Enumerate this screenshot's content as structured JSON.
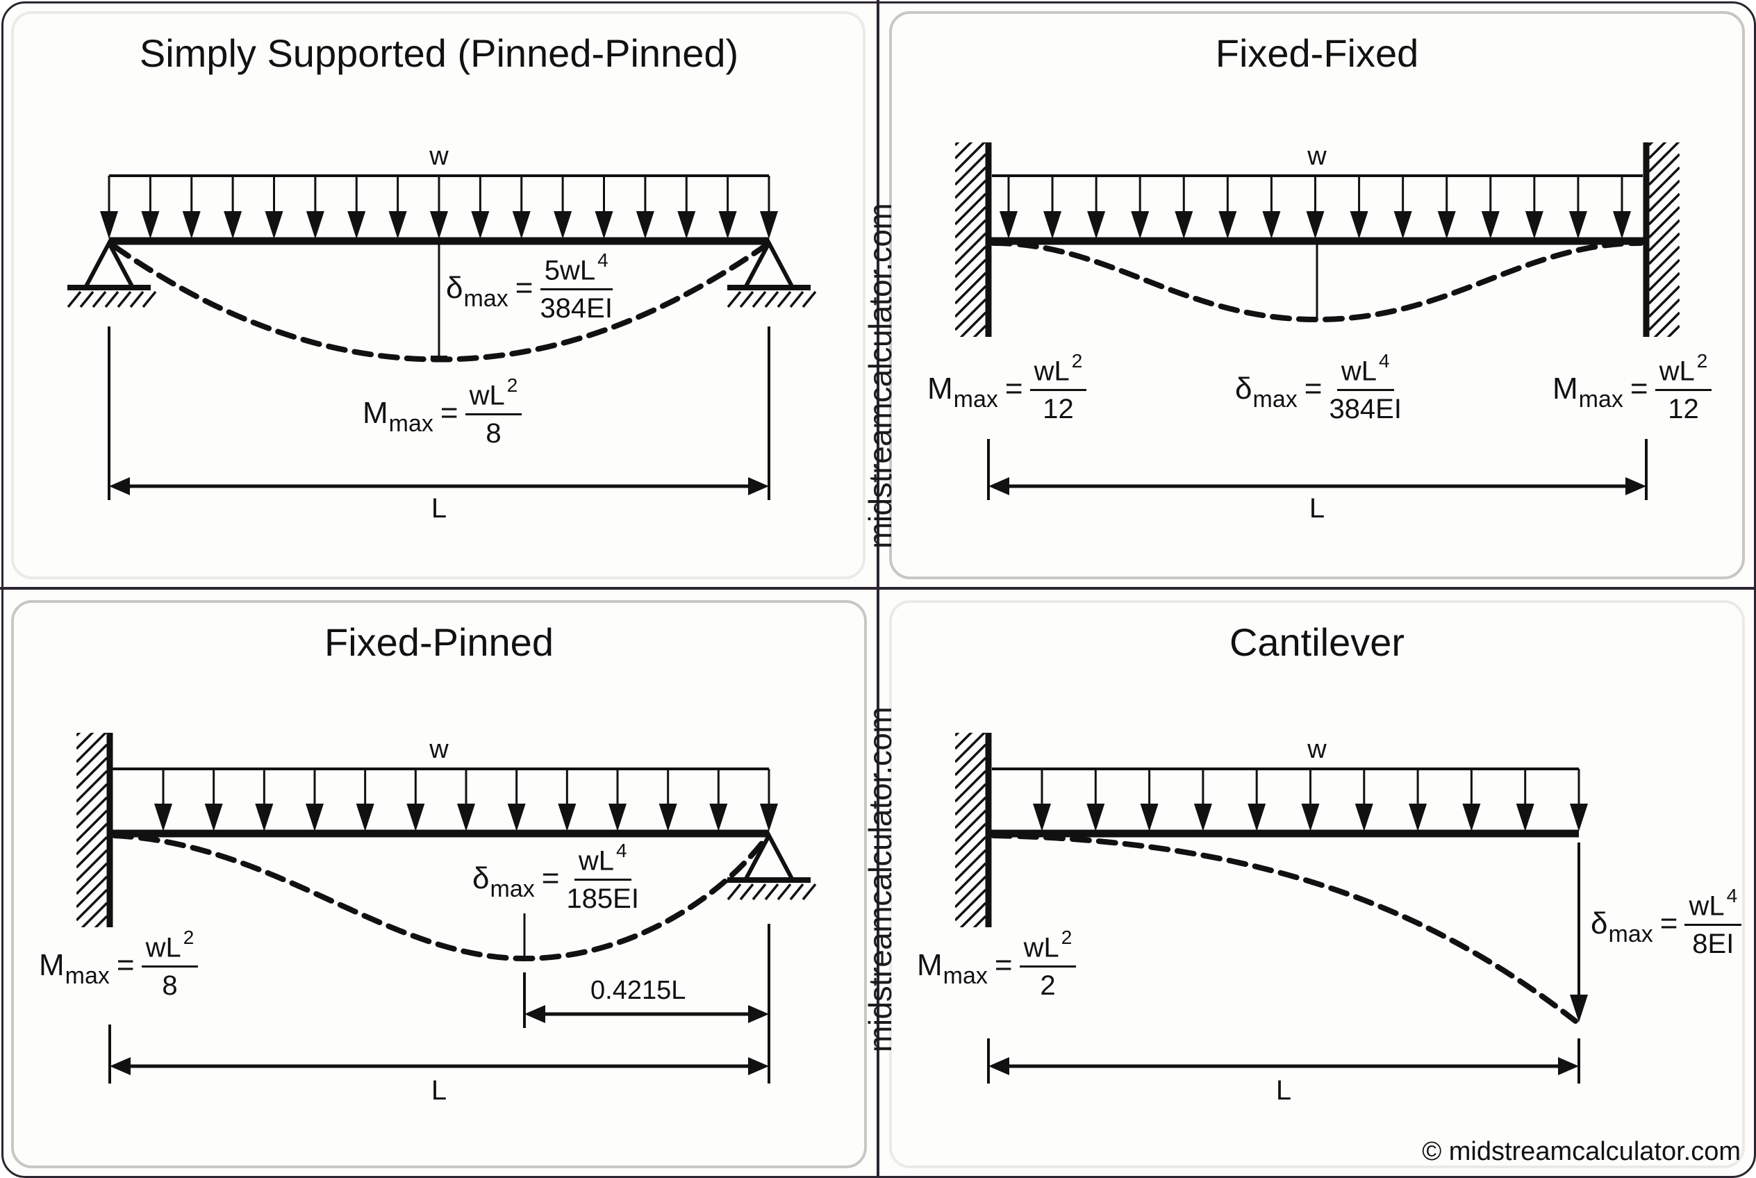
{
  "colors": {
    "frame": "#2a2530",
    "panel_border": "#c9c7c3",
    "ink": "#111111",
    "background": "#fdfdfc"
  },
  "panels": [
    {
      "id": "simply-supported",
      "title": "Simply Supported (Pinned-Pinned)",
      "load_label": "w",
      "arrow_count": 17,
      "span_label": "L",
      "supports": [
        "pin",
        "pin"
      ],
      "deflection": {
        "symbol": "δ",
        "sub": "max",
        "eq": "=",
        "num": "5wL",
        "num_exp": "4",
        "den": "384EI"
      },
      "moment": {
        "symbol": "M",
        "sub": "max",
        "eq": "=",
        "num": "wL",
        "num_exp": "2",
        "den": "8"
      }
    },
    {
      "id": "fixed-fixed",
      "title": "Fixed-Fixed",
      "load_label": "w",
      "arrow_count": 15,
      "span_label": "L",
      "supports": [
        "fixed",
        "fixed"
      ],
      "moment_left": {
        "symbol": "M",
        "sub": "max",
        "eq": "=",
        "num": "wL",
        "num_exp": "2",
        "den": "12"
      },
      "deflection": {
        "symbol": "δ",
        "sub": "max",
        "eq": "=",
        "num": "wL",
        "num_exp": "4",
        "den": "384EI"
      },
      "moment_right": {
        "symbol": "M",
        "sub": "max",
        "eq": "=",
        "num": "wL",
        "num_exp": "2",
        "den": "12"
      }
    },
    {
      "id": "fixed-pinned",
      "title": "Fixed-Pinned",
      "load_label": "w",
      "arrow_count": 13,
      "span_label": "L",
      "supports": [
        "fixed",
        "pin"
      ],
      "deflection": {
        "symbol": "δ",
        "sub": "max",
        "eq": "=",
        "num": "wL",
        "num_exp": "4",
        "den": "185EI"
      },
      "moment": {
        "symbol": "M",
        "sub": "max",
        "eq": "=",
        "num": "wL",
        "num_exp": "2",
        "den": "8"
      },
      "location_label": "0.4215L"
    },
    {
      "id": "cantilever",
      "title": "Cantilever",
      "load_label": "w",
      "arrow_count": 11,
      "span_label": "L",
      "supports": [
        "fixed",
        "free"
      ],
      "deflection": {
        "symbol": "δ",
        "sub": "max",
        "eq": "=",
        "num": "wL",
        "num_exp": "4",
        "den": "8EI"
      },
      "moment": {
        "symbol": "M",
        "sub": "max",
        "eq": "=",
        "num": "wL",
        "num_exp": "2",
        "den": "2"
      }
    }
  ],
  "watermark": "midstreamcalculator.com",
  "copyright": "© midstreamcalculator.com"
}
